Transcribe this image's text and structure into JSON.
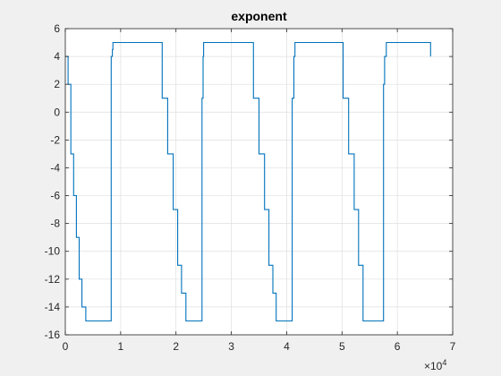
{
  "chart_data": {
    "type": "line",
    "title": "exponent",
    "xlabel": "",
    "ylabel": "",
    "x_multiplier_label": "×10",
    "x_multiplier_exponent": "4",
    "xlim": [
      0,
      70000
    ],
    "ylim": [
      -16,
      6
    ],
    "x_ticks": [
      0,
      10000,
      20000,
      30000,
      40000,
      50000,
      60000,
      70000
    ],
    "x_tick_labels": [
      "0",
      "1",
      "2",
      "3",
      "4",
      "5",
      "6",
      "7"
    ],
    "y_ticks": [
      -16,
      -14,
      -12,
      -10,
      -8,
      -6,
      -4,
      -2,
      0,
      2,
      4,
      6
    ],
    "y_tick_labels": [
      "-16",
      "-14",
      "-12",
      "-10",
      "-8",
      "-6",
      "-4",
      "-2",
      "0",
      "2",
      "4",
      "6"
    ],
    "grid": true,
    "series": [
      {
        "color": "#0072BD",
        "x": [
          0,
          500,
          1000,
          1500,
          2000,
          2500,
          3000,
          3700,
          8200,
          8300,
          8500,
          8600,
          16700,
          17500,
          18500,
          19500,
          20300,
          21000,
          21800,
          24500,
          24700,
          24900,
          25000,
          33200,
          34000,
          35000,
          36000,
          36800,
          37500,
          38100,
          40900,
          41000,
          41300,
          41500,
          49400,
          50200,
          51200,
          52200,
          53000,
          53800,
          57400,
          57500,
          57700,
          58000,
          66000,
          66000
        ],
        "y": [
          4,
          2,
          -3,
          -6,
          -9,
          -12,
          -14,
          -15,
          -15,
          4,
          4.5,
          5,
          5,
          1,
          -3,
          -7,
          -11,
          -13,
          -15,
          -15,
          1,
          4,
          5,
          5,
          1,
          -3,
          -7,
          -11,
          -13,
          -15,
          -15,
          1,
          4,
          5,
          5,
          1,
          -3,
          -7,
          -11,
          -15,
          -15,
          2,
          4,
          5,
          5,
          4
        ]
      }
    ]
  }
}
